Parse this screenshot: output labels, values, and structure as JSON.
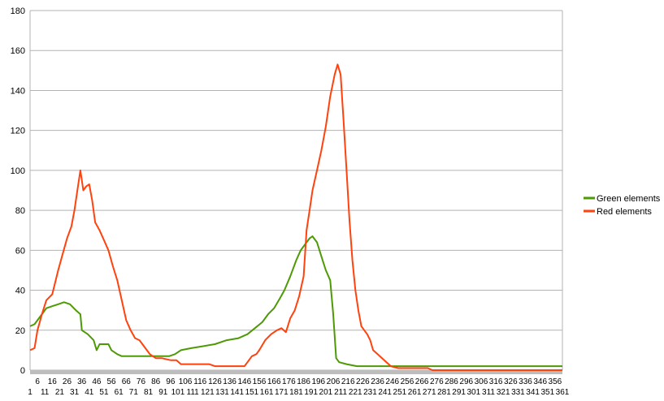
{
  "chart_data": {
    "type": "line",
    "title": "",
    "xlabel": "",
    "ylabel": "",
    "ylim": [
      0,
      180
    ],
    "yticks": [
      0,
      20,
      40,
      60,
      80,
      100,
      120,
      140,
      160,
      180
    ],
    "x_range": [
      1,
      361
    ],
    "x_tick_step": 5,
    "grid": "horizontal",
    "legend_position": "right",
    "series": [
      {
        "name": "Green elements",
        "color": "#4e9a06",
        "points": [
          [
            1,
            22
          ],
          [
            4,
            23
          ],
          [
            6,
            25
          ],
          [
            9,
            28
          ],
          [
            12,
            31
          ],
          [
            16,
            32
          ],
          [
            20,
            33
          ],
          [
            24,
            34
          ],
          [
            28,
            33
          ],
          [
            32,
            30
          ],
          [
            35,
            28
          ],
          [
            36,
            20
          ],
          [
            40,
            18
          ],
          [
            44,
            15
          ],
          [
            46,
            10
          ],
          [
            48,
            13
          ],
          [
            54,
            13
          ],
          [
            56,
            10
          ],
          [
            60,
            8
          ],
          [
            63,
            7
          ],
          [
            70,
            7
          ],
          [
            80,
            7
          ],
          [
            87,
            7
          ],
          [
            90,
            7
          ],
          [
            95,
            7
          ],
          [
            99,
            8
          ],
          [
            103,
            10
          ],
          [
            110,
            11
          ],
          [
            118,
            12
          ],
          [
            126,
            13
          ],
          [
            134,
            15
          ],
          [
            142,
            16
          ],
          [
            148,
            18
          ],
          [
            153,
            21
          ],
          [
            158,
            24
          ],
          [
            162,
            28
          ],
          [
            166,
            31
          ],
          [
            170,
            36
          ],
          [
            173,
            40
          ],
          [
            177,
            47
          ],
          [
            181,
            55
          ],
          [
            184,
            60
          ],
          [
            187,
            63
          ],
          [
            190,
            66
          ],
          [
            192,
            67
          ],
          [
            195,
            64
          ],
          [
            198,
            57
          ],
          [
            201,
            50
          ],
          [
            204,
            45
          ],
          [
            206,
            28
          ],
          [
            208,
            6
          ],
          [
            210,
            4
          ],
          [
            215,
            3
          ],
          [
            222,
            2
          ],
          [
            230,
            2
          ],
          [
            240,
            2
          ],
          [
            250,
            2
          ],
          [
            260,
            2
          ],
          [
            280,
            2
          ],
          [
            300,
            2
          ],
          [
            320,
            2
          ],
          [
            340,
            2
          ],
          [
            361,
            2
          ]
        ]
      },
      {
        "name": "Red elements",
        "color": "#ff420e",
        "points": [
          [
            1,
            10
          ],
          [
            4,
            11
          ],
          [
            6,
            20
          ],
          [
            9,
            28
          ],
          [
            12,
            35
          ],
          [
            16,
            38
          ],
          [
            20,
            50
          ],
          [
            23,
            58
          ],
          [
            26,
            66
          ],
          [
            29,
            72
          ],
          [
            31,
            80
          ],
          [
            33,
            90
          ],
          [
            35,
            100
          ],
          [
            37,
            90
          ],
          [
            39,
            92
          ],
          [
            41,
            93
          ],
          [
            43,
            85
          ],
          [
            45,
            74
          ],
          [
            48,
            70
          ],
          [
            51,
            65
          ],
          [
            54,
            60
          ],
          [
            57,
            52
          ],
          [
            60,
            45
          ],
          [
            63,
            35
          ],
          [
            66,
            25
          ],
          [
            69,
            20
          ],
          [
            72,
            16
          ],
          [
            75,
            15
          ],
          [
            78,
            12
          ],
          [
            80,
            10
          ],
          [
            82,
            8
          ],
          [
            84,
            7
          ],
          [
            86,
            6
          ],
          [
            90,
            6
          ],
          [
            96,
            5
          ],
          [
            100,
            5
          ],
          [
            103,
            3
          ],
          [
            110,
            3
          ],
          [
            116,
            3
          ],
          [
            122,
            3
          ],
          [
            126,
            2
          ],
          [
            132,
            2
          ],
          [
            140,
            2
          ],
          [
            146,
            2
          ],
          [
            148,
            4
          ],
          [
            151,
            7
          ],
          [
            154,
            8
          ],
          [
            156,
            10
          ],
          [
            160,
            15
          ],
          [
            164,
            18
          ],
          [
            168,
            20
          ],
          [
            171,
            21
          ],
          [
            174,
            19
          ],
          [
            177,
            26
          ],
          [
            180,
            30
          ],
          [
            183,
            37
          ],
          [
            186,
            47
          ],
          [
            188,
            70
          ],
          [
            190,
            80
          ],
          [
            192,
            90
          ],
          [
            195,
            100
          ],
          [
            198,
            110
          ],
          [
            201,
            122
          ],
          [
            204,
            137
          ],
          [
            207,
            148
          ],
          [
            209,
            153
          ],
          [
            211,
            148
          ],
          [
            213,
            125
          ],
          [
            215,
            100
          ],
          [
            217,
            75
          ],
          [
            219,
            55
          ],
          [
            221,
            40
          ],
          [
            223,
            30
          ],
          [
            225,
            22
          ],
          [
            227,
            20
          ],
          [
            229,
            18
          ],
          [
            231,
            15
          ],
          [
            233,
            10
          ],
          [
            236,
            8
          ],
          [
            239,
            6
          ],
          [
            242,
            4
          ],
          [
            245,
            2
          ],
          [
            250,
            1
          ],
          [
            255,
            1
          ],
          [
            265,
            1
          ],
          [
            270,
            1
          ],
          [
            273,
            0
          ],
          [
            280,
            0
          ],
          [
            300,
            0
          ],
          [
            320,
            0
          ],
          [
            340,
            0
          ],
          [
            361,
            0
          ]
        ]
      }
    ]
  }
}
